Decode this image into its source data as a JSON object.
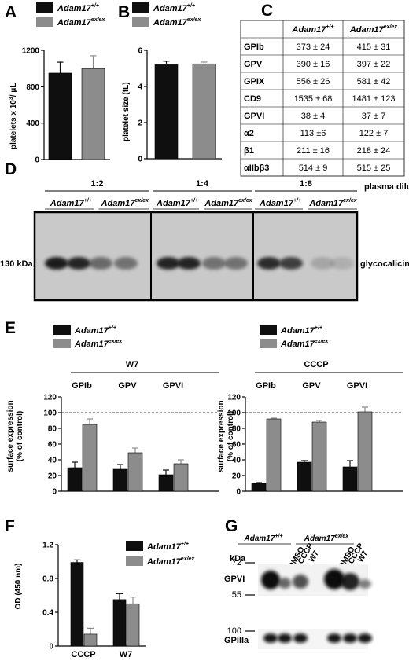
{
  "colors": {
    "wt": "#0f0f0f",
    "ko": "#8c8c8c"
  },
  "legend": {
    "wt": "Adam17",
    "wt_sup": "+/+",
    "ko": "Adam17",
    "ko_sup": "ex/ex"
  },
  "panelA": {
    "label": "A",
    "ylabel": "platelets x 10",
    "ylabel_sup": "3",
    "ylabel_end": "/ μL",
    "ticks": [
      "0",
      "400",
      "800",
      "1200"
    ]
  },
  "panelB": {
    "label": "B",
    "ylabel": "platelet size (fL)",
    "ticks": [
      "0",
      "2",
      "4",
      "6"
    ]
  },
  "panelC": {
    "label": "C",
    "col1": "Adam17",
    "col1_sup": "+/+",
    "col2": "Adam17",
    "col2_sup": "ex/ex",
    "rows": [
      {
        "name": "GPIb",
        "wt": "373 ± 24",
        "ko": "415 ± 31"
      },
      {
        "name": "GPV",
        "wt": "390 ± 16",
        "ko": "397 ± 22"
      },
      {
        "name": "GPIX",
        "wt": "556 ± 26",
        "ko": "581 ± 42"
      },
      {
        "name": "CD9",
        "wt": "1535 ± 68",
        "ko": "1481 ± 123"
      },
      {
        "name": "GPVI",
        "wt": "38 ± 4",
        "ko": "37 ± 7"
      },
      {
        "name": "α2",
        "wt": "113 ±6",
        "ko": "122 ± 7"
      },
      {
        "name": "β1",
        "wt": "211 ± 16",
        "ko": "218 ± 24"
      },
      {
        "name": "αIIbβ3",
        "wt": "514 ± 9",
        "ko": "515 ± 25"
      }
    ]
  },
  "panelD": {
    "label": "D",
    "dilutions": [
      "1:2",
      "1:4",
      "1:8"
    ],
    "dilution_label": "plasma dilution",
    "kda": "130 kDa",
    "band": "glycocalicin"
  },
  "panelE": {
    "label": "E",
    "left_title": "W7",
    "right_title": "CCCP",
    "ylabel1": "surface expression",
    "ylabel2": "(% of control)",
    "ticks": [
      "0",
      "20",
      "40",
      "60",
      "80",
      "100",
      "120"
    ]
  },
  "panelF": {
    "label": "F",
    "ylabel": "OD (450 nm)",
    "ticks": [
      "0",
      "0.4",
      "0.8",
      "1.2"
    ]
  },
  "panelG": {
    "label": "G",
    "kda": "kDa",
    "markers": [
      "72",
      "55",
      "100"
    ],
    "lanes": [
      "DMSO",
      "CCCP",
      "W7"
    ],
    "blot1": "GPVI",
    "blot2": "GPIIIa"
  },
  "chart_data": [
    {
      "id": "A",
      "type": "bar",
      "categories": [
        "Adam17+/+",
        "Adam17ex/ex"
      ],
      "values": [
        950,
        1000
      ],
      "errors": [
        120,
        140
      ],
      "ylim": [
        0,
        1200
      ],
      "ylabel": "platelets x 10³ / μL"
    },
    {
      "id": "B",
      "type": "bar",
      "categories": [
        "Adam17+/+",
        "Adam17ex/ex"
      ],
      "values": [
        5.2,
        5.25
      ],
      "errors": [
        0.2,
        0.1
      ],
      "ylim": [
        0,
        6
      ],
      "ylabel": "platelet size (fL)"
    },
    {
      "id": "E-W7",
      "type": "bar",
      "title": "W7",
      "categories": [
        "GPIb",
        "GPV",
        "GPVI"
      ],
      "series": [
        {
          "name": "Adam17+/+",
          "values": [
            30,
            28,
            21
          ],
          "errors": [
            7,
            6,
            6
          ]
        },
        {
          "name": "Adam17ex/ex",
          "values": [
            85,
            49,
            35
          ],
          "errors": [
            7,
            6,
            5
          ]
        }
      ],
      "ylim": [
        0,
        120
      ],
      "reference": 100,
      "ylabel": "surface expression (% of control)"
    },
    {
      "id": "E-CCCP",
      "type": "bar",
      "title": "CCCP",
      "categories": [
        "GPIb",
        "GPV",
        "GPVI"
      ],
      "series": [
        {
          "name": "Adam17+/+",
          "values": [
            10,
            37,
            31
          ],
          "errors": [
            1,
            2,
            8
          ]
        },
        {
          "name": "Adam17ex/ex",
          "values": [
            92,
            88,
            101
          ],
          "errors": [
            1,
            2,
            6
          ]
        }
      ],
      "ylim": [
        0,
        120
      ],
      "reference": 100,
      "ylabel": "surface expression (% of control)"
    },
    {
      "id": "F",
      "type": "bar",
      "categories": [
        "CCCP",
        "W7"
      ],
      "series": [
        {
          "name": "Adam17+/+",
          "values": [
            0.99,
            0.55
          ],
          "errors": [
            0.03,
            0.07
          ]
        },
        {
          "name": "Adam17ex/ex",
          "values": [
            0.14,
            0.5
          ],
          "errors": [
            0.07,
            0.08
          ]
        }
      ],
      "ylim": [
        0,
        1.2
      ],
      "ylabel": "OD (450 nm)"
    }
  ]
}
